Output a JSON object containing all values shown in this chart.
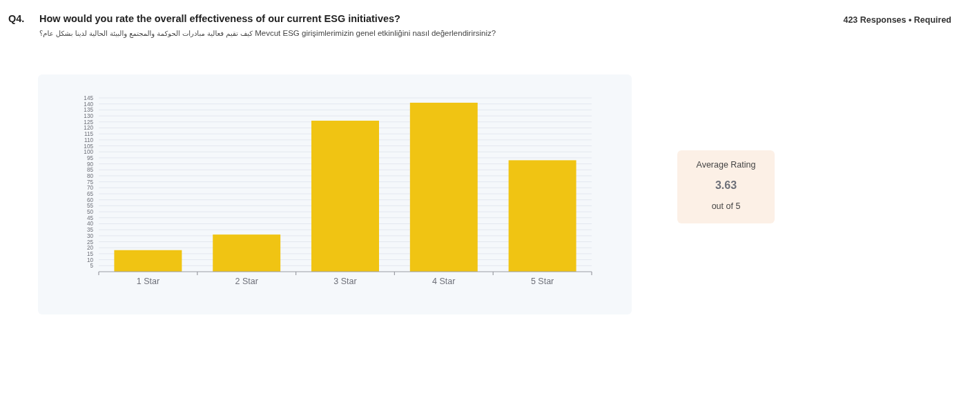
{
  "chart_data": {
    "type": "bar",
    "title": "How would you rate the overall effectiveness of our current ESG initiatives?",
    "subtitle": "كيف تقيم فعالية مبادرات الحوكمة والمجتمع والبيئة الحالية لدينا بشكل عام؟",
    "annotations": [
      "Mevcut ESG girişimlerimizin genel etkinliğini nasıl değerlendirirsiniz?",
      "Q4.",
      "423 Responses • Required",
      "Average Rating",
      "3.63",
      "out of 5"
    ],
    "categories": [
      "1 Star",
      "2 Star",
      "3 Star",
      "4 Star",
      "5 Star"
    ],
    "values": [
      18,
      31,
      126,
      141,
      93
    ],
    "color": "#f0c413",
    "ylim": [
      0,
      145
    ],
    "yticks": [
      5,
      10,
      15,
      20,
      25,
      30,
      35,
      40,
      45,
      50,
      55,
      60,
      65,
      70,
      75,
      80,
      85,
      90,
      95,
      100,
      105,
      110,
      115,
      120,
      125,
      130,
      135,
      140,
      145
    ],
    "grid": "y"
  }
}
